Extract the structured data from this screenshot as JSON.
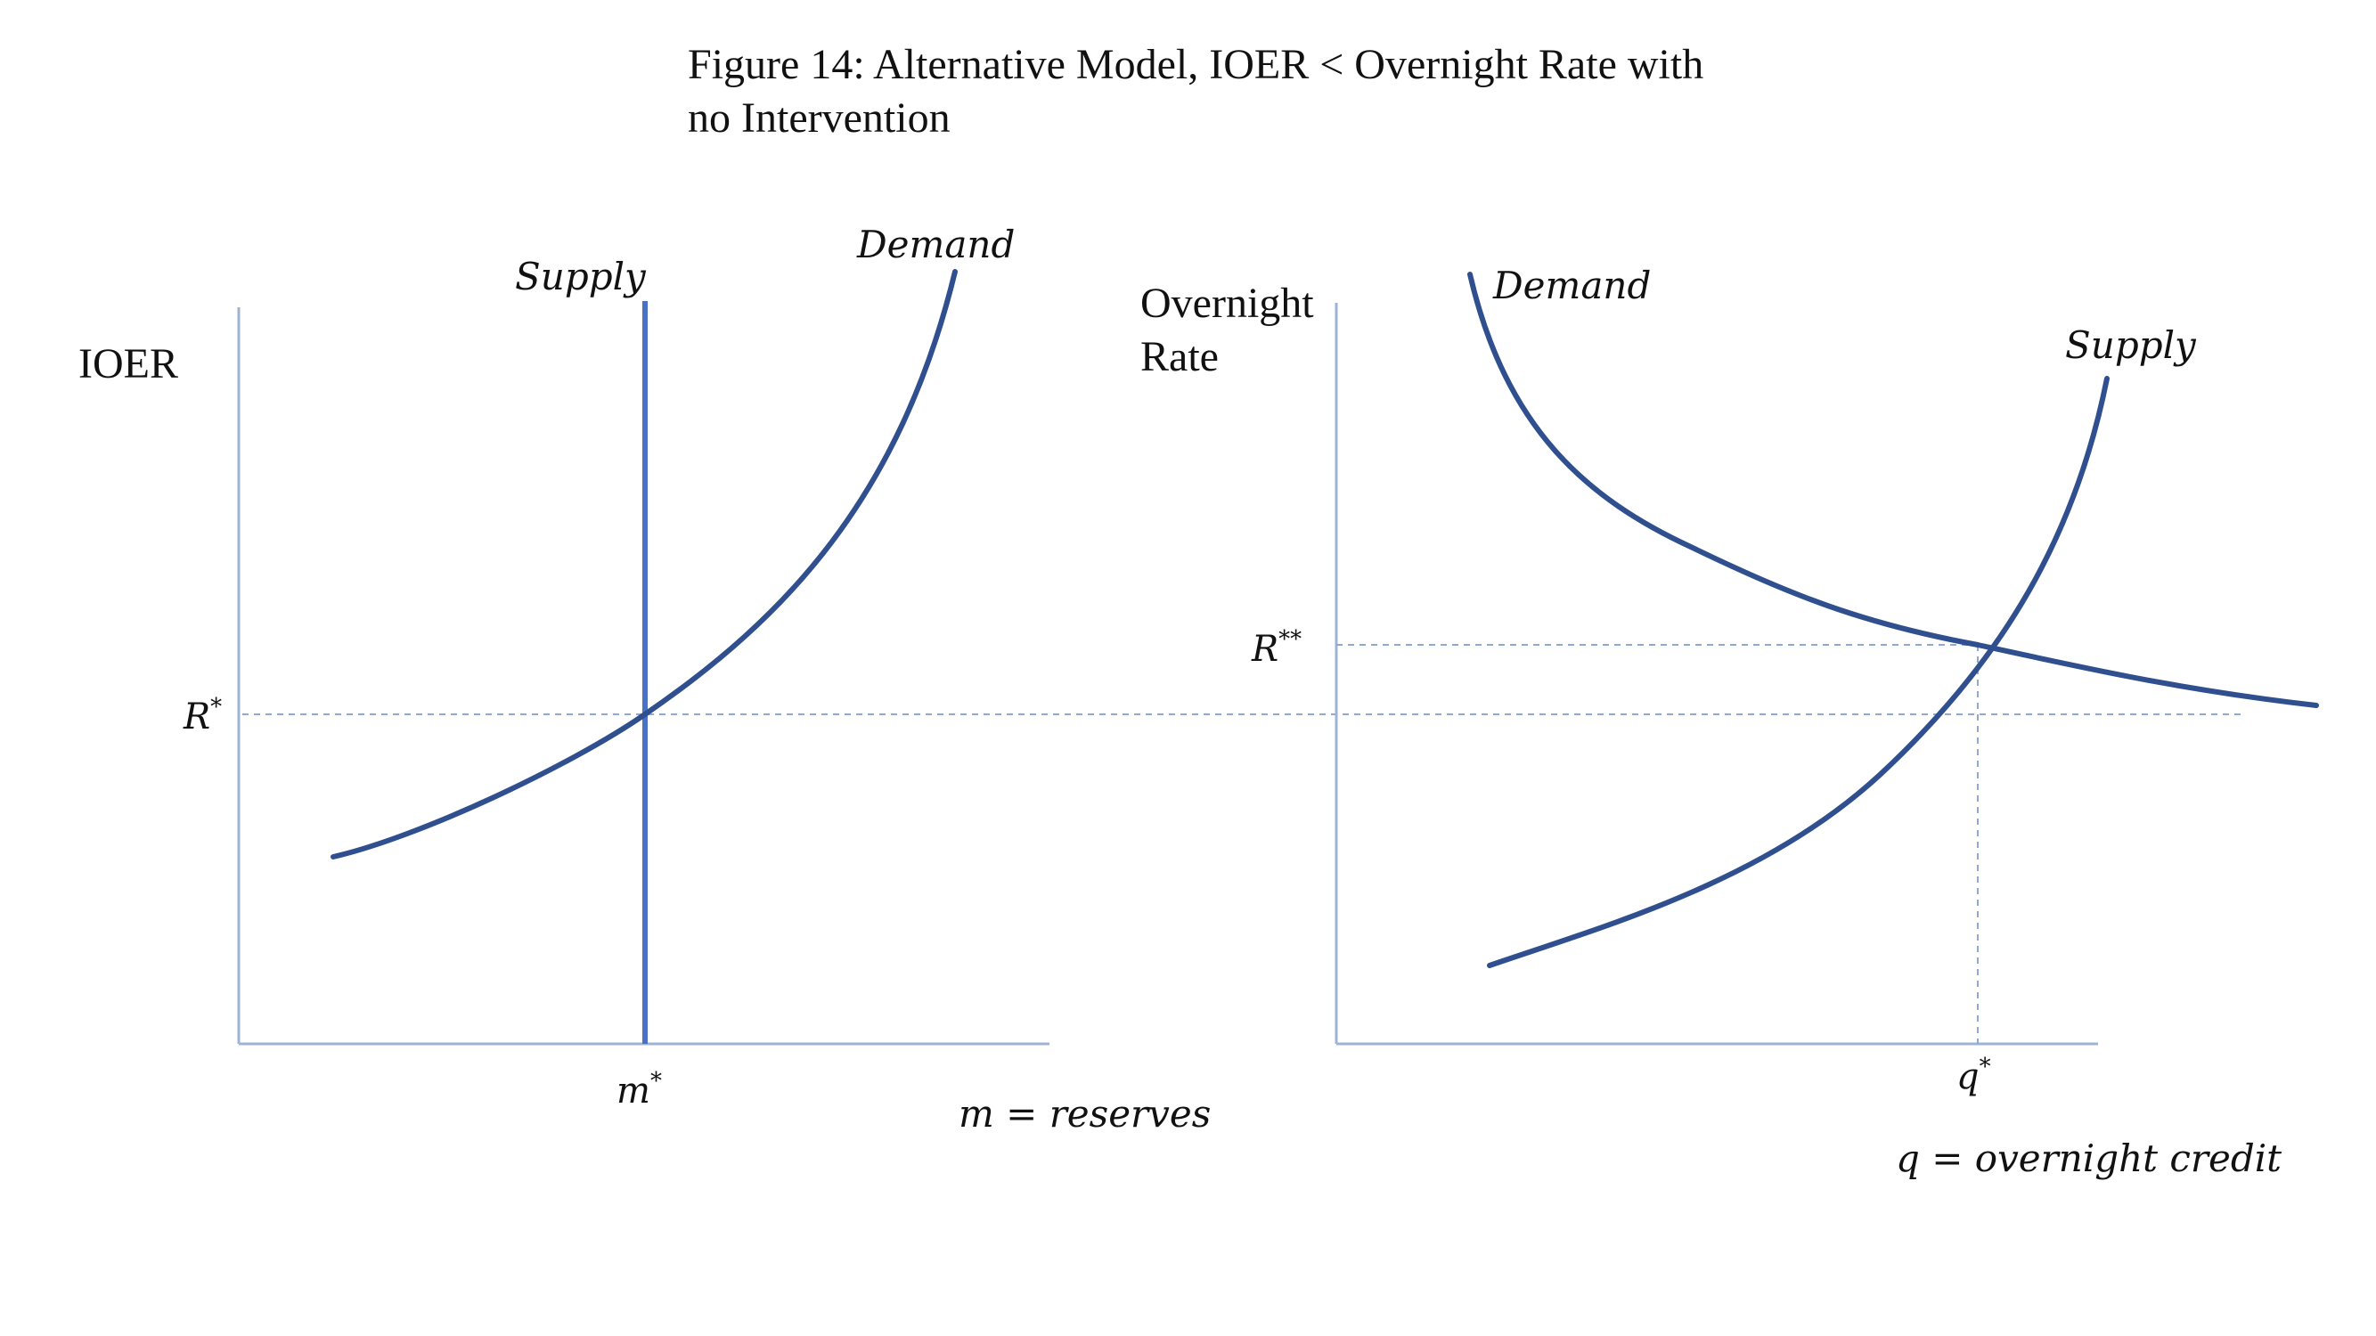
{
  "figure": {
    "title_line1": "Figure 14: Alternative Model, IOER < Overnight Rate with",
    "title_line2": "no Intervention"
  },
  "left_panel": {
    "y_axis_label": "IOER",
    "supply_label": "Supply",
    "demand_label": "Demand",
    "equilibrium_rate_label": "R",
    "equilibrium_rate_sup": "*",
    "equilibrium_quantity_label": "m",
    "equilibrium_quantity_sup": "*",
    "x_variable_label": "m = reserves"
  },
  "right_panel": {
    "y_axis_label_line1": "Overnight",
    "y_axis_label_line2": "Rate",
    "demand_label": "Demand",
    "supply_label": "Supply",
    "equilibrium_rate_label": "R",
    "equilibrium_rate_sup": "**",
    "equilibrium_quantity_label": "q",
    "equilibrium_quantity_sup": "*",
    "x_variable_label": "q = overnight credit"
  },
  "colors": {
    "curve": "#2f4f8f",
    "vertical_supply": "#4a72c4",
    "axis": "#9fb3d6",
    "dashed_guide": "#8fa8d4",
    "text": "#111111"
  }
}
